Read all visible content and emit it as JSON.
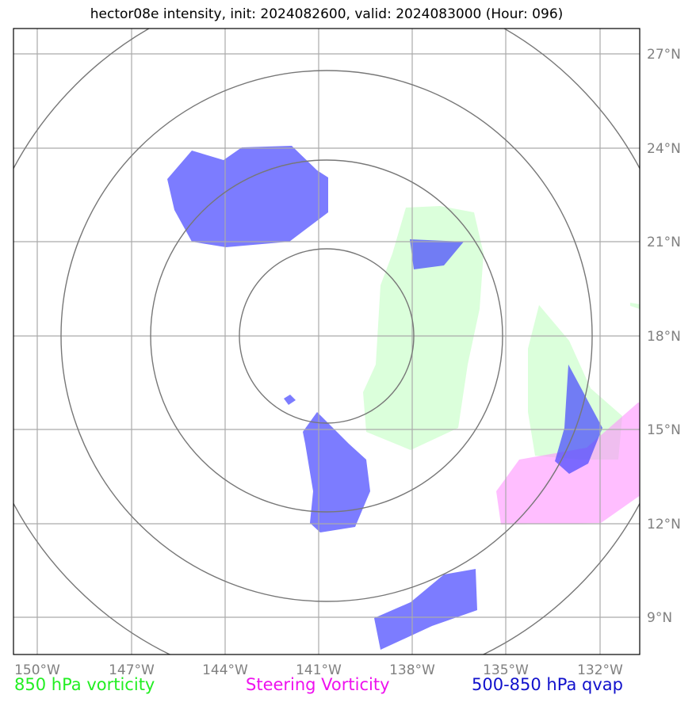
{
  "title": "hector08e intensity, init: 2024082600, valid: 2024083000 (Hour: 096)",
  "legend": [
    {
      "label": "850 hPa vorticity",
      "color": "#22ee22"
    },
    {
      "label": "Steering Vorticity",
      "color": "#ee11ee"
    },
    {
      "label": "500-850 hPa qvap",
      "color": "#1111cc"
    }
  ],
  "map": {
    "lon_ticks": [
      "150°W",
      "147°W",
      "144°W",
      "141°W",
      "138°W",
      "135°W",
      "132°W"
    ],
    "lat_ticks": [
      "27°N",
      "24°N",
      "21°N",
      "18°N",
      "15°N",
      "12°N",
      "9°N"
    ],
    "grid": true,
    "colors": {
      "vort850": "#ccffcc",
      "steering": "#ff99ff",
      "qvap": "#5555ff",
      "range_rings": "#777777",
      "gridlines": "#aaaaaa"
    }
  }
}
